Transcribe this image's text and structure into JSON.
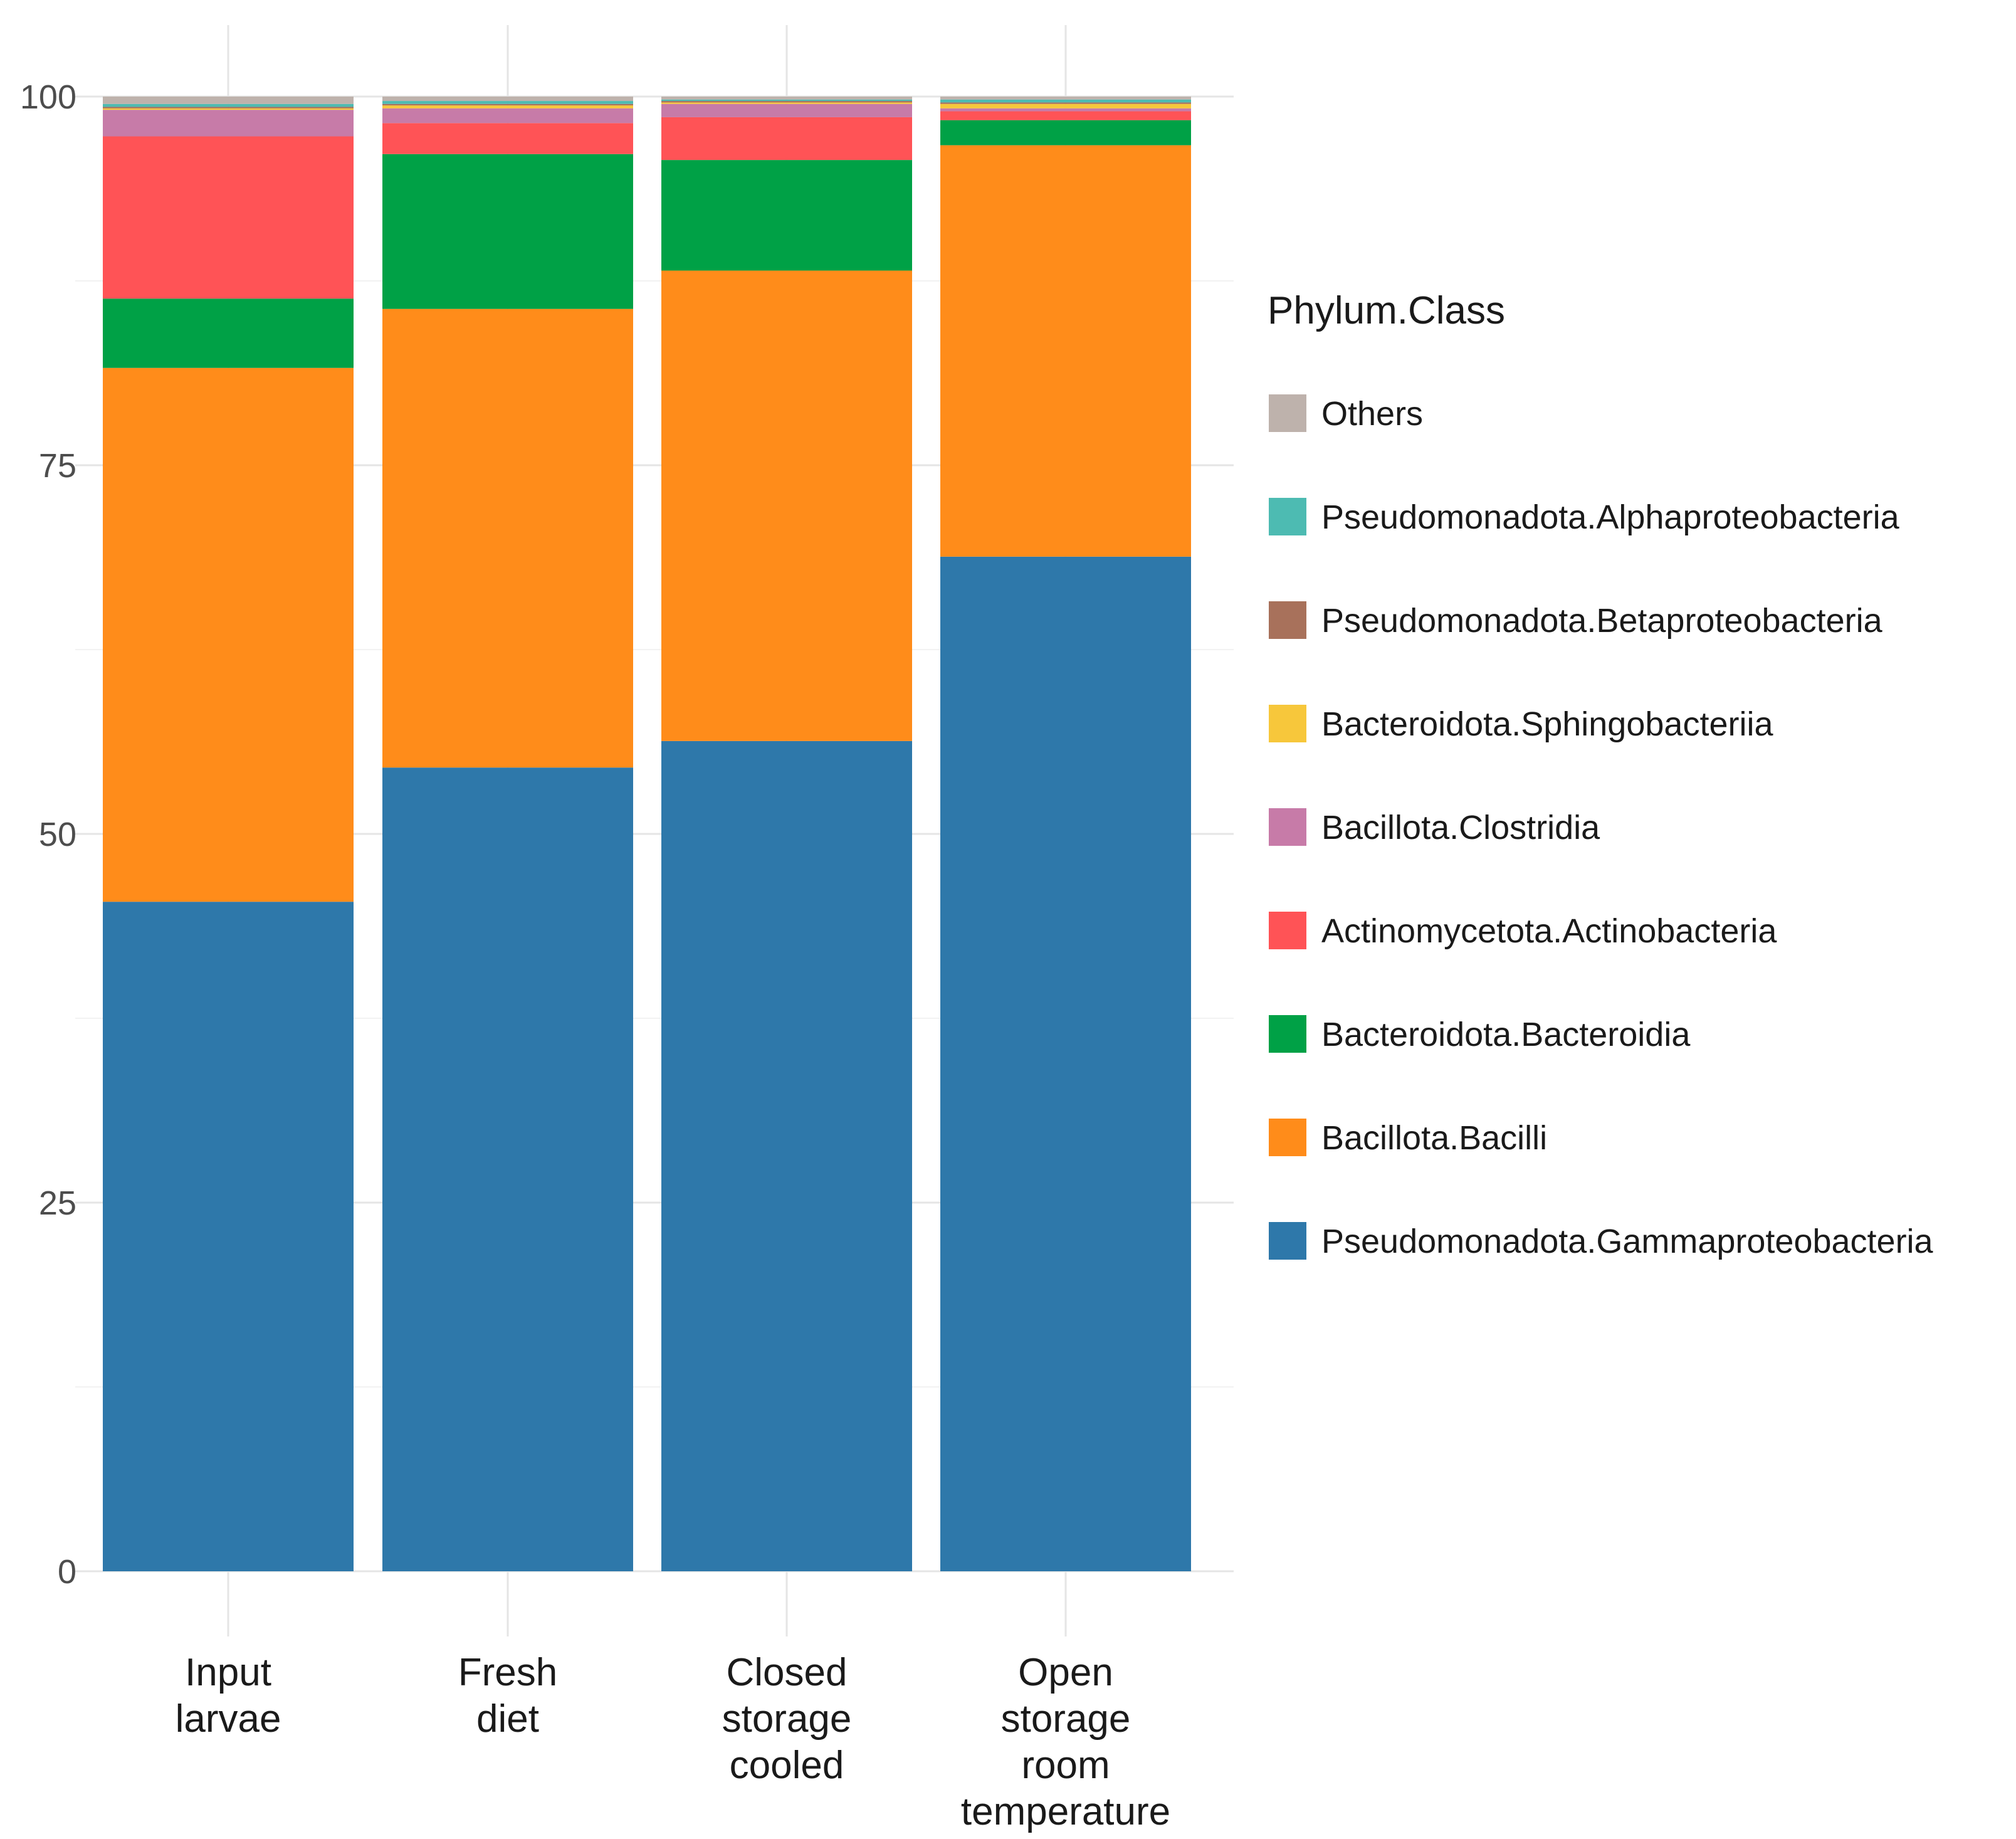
{
  "chart_data": {
    "type": "bar",
    "stacked": true,
    "title": "",
    "xlabel": "",
    "ylabel": "",
    "ylim": [
      0,
      100
    ],
    "yticks": [
      0,
      25,
      50,
      75,
      100
    ],
    "grid": true,
    "legend_position": "right",
    "categories": [
      [
        "Input",
        "larvae"
      ],
      [
        "Fresh",
        "diet"
      ],
      [
        "Closed",
        "storage",
        "cooled"
      ],
      [
        "Open",
        "storage",
        "room",
        "temperature"
      ]
    ],
    "legend_title": "Phylum.Class",
    "series": [
      {
        "name": "Pseudomonadota.Gammaproteobacteria",
        "color": "#2E78AA",
        "values": [
          45.4,
          54.5,
          56.3,
          68.8
        ]
      },
      {
        "name": "Bacillota.Bacilli",
        "color": "#FF8C1A",
        "values": [
          36.2,
          31.1,
          31.9,
          27.9
        ]
      },
      {
        "name": "Bacteroidota.Bacteroidia",
        "color": "#00A146",
        "values": [
          4.7,
          10.5,
          7.5,
          1.7
        ]
      },
      {
        "name": "Actinomycetota.Actinobacteria",
        "color": "#FF5356",
        "values": [
          11.0,
          2.1,
          2.9,
          0.6
        ]
      },
      {
        "name": "Bacillota.Clostridia",
        "color": "#C77BA8",
        "values": [
          1.8,
          1.0,
          0.9,
          0.2
        ]
      },
      {
        "name": "Bacteroidota.Sphingobacteriia",
        "color": "#F7C73B",
        "values": [
          0.1,
          0.2,
          0.1,
          0.3
        ]
      },
      {
        "name": "Pseudomonadota.Betaproteobacteria",
        "color": "#A8715B",
        "values": [
          0.1,
          0.1,
          0.1,
          0.1
        ]
      },
      {
        "name": "Pseudomonadota.Alphaproteobacteria",
        "color": "#4DBBB2",
        "values": [
          0.2,
          0.2,
          0.1,
          0.2
        ]
      },
      {
        "name": "Others",
        "color": "#BEB2AC",
        "values": [
          0.5,
          0.3,
          0.2,
          0.2
        ]
      }
    ]
  }
}
